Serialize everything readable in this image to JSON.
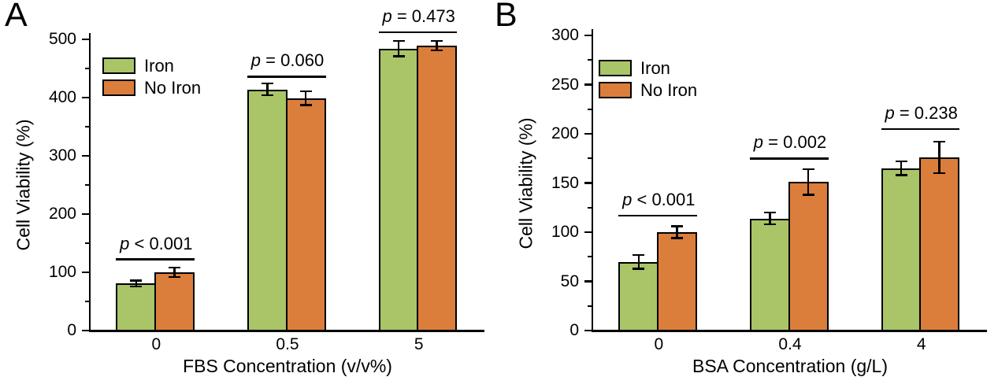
{
  "figure": {
    "background": "#ffffff",
    "axis_color": "#000000",
    "text_color": "#000000"
  },
  "chart_data": [
    {
      "type": "bar",
      "panel_label": "A",
      "title": "",
      "xlabel": "FBS Concentration (v/v%)",
      "ylabel": "Cell Viability (%)",
      "ylim": [
        0,
        500
      ],
      "yticks": [
        0,
        100,
        200,
        300,
        400,
        500
      ],
      "minor_tick_step": 50,
      "grid": false,
      "legend_position": "top-left",
      "legend_labels": [
        "Iron",
        "No Iron"
      ],
      "categories": [
        "0",
        "0.5",
        "5"
      ],
      "series": [
        {
          "name": "Iron",
          "color": "#A9C568",
          "values": [
            81,
            414,
            484
          ],
          "errors": [
            5,
            10,
            13
          ]
        },
        {
          "name": "No Iron",
          "color": "#DB7E3C",
          "values": [
            100,
            399,
            489
          ],
          "errors": [
            8,
            12,
            8
          ]
        }
      ],
      "annotations": [
        {
          "text": "p < 0.001",
          "group_index": 0,
          "line_value": 122
        },
        {
          "text": "p = 0.060",
          "group_index": 1,
          "line_value": 436
        },
        {
          "text": "p = 0.473",
          "group_index": 2,
          "line_value": 512
        }
      ]
    },
    {
      "type": "bar",
      "panel_label": "B",
      "title": "",
      "xlabel": "BSA Concentration (g/L)",
      "ylabel": "Cell Viability (%)",
      "ylim": [
        0,
        300
      ],
      "yticks": [
        0,
        50,
        100,
        150,
        200,
        250,
        300
      ],
      "minor_tick_step": 25,
      "grid": false,
      "legend_position": "top-left",
      "legend_labels": [
        "Iron",
        "No Iron"
      ],
      "categories": [
        "0",
        "0.4",
        "4"
      ],
      "series": [
        {
          "name": "Iron",
          "color": "#A9C568",
          "values": [
            70,
            114,
            165
          ],
          "errors": [
            7,
            6,
            7
          ]
        },
        {
          "name": "No Iron",
          "color": "#DB7E3C",
          "values": [
            100,
            151,
            176
          ],
          "errors": [
            6,
            13,
            16
          ]
        }
      ],
      "annotations": [
        {
          "text": "p < 0.001",
          "group_index": 0,
          "line_value": 117
        },
        {
          "text": "p = 0.002",
          "group_index": 1,
          "line_value": 175
        },
        {
          "text": "p = 0.238",
          "group_index": 2,
          "line_value": 205
        }
      ]
    }
  ]
}
